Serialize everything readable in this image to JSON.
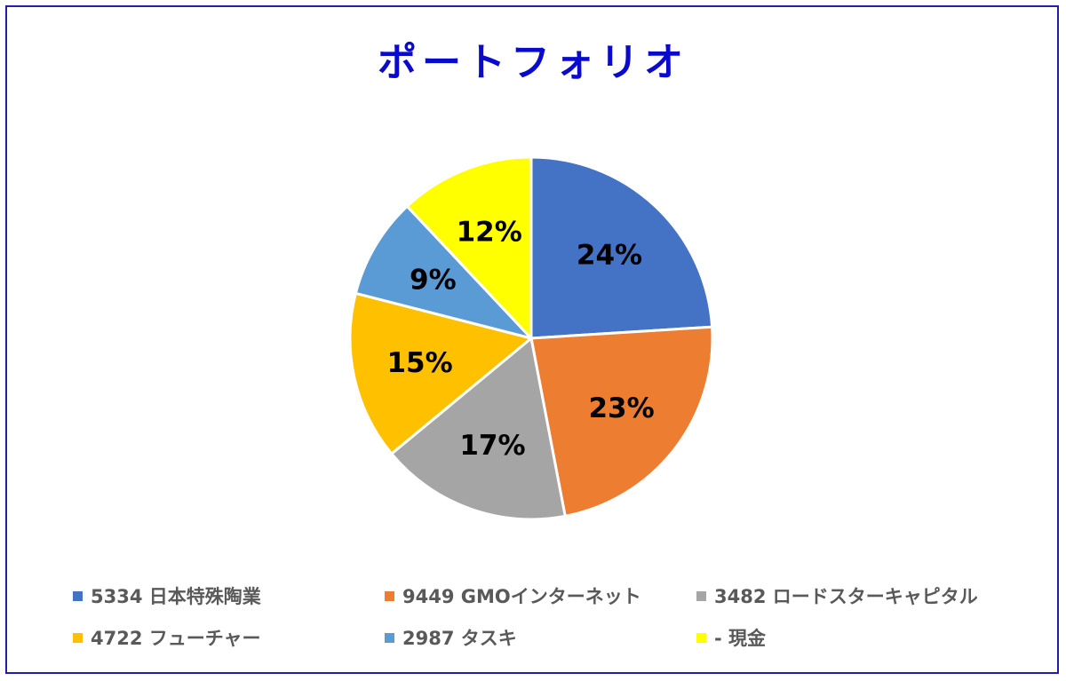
{
  "chart_data": {
    "type": "pie",
    "title": "ポートフォリオ",
    "slices": [
      {
        "label": "5334 日本特殊陶業",
        "value": 24,
        "color": "#4472c4",
        "data_label": "24%"
      },
      {
        "label": "9449 GMOインターネット",
        "value": 23,
        "color": "#ed7d31",
        "data_label": "23%"
      },
      {
        "label": "3482 ロードスターキャピタル",
        "value": 17,
        "color": "#a5a5a5",
        "data_label": "17%"
      },
      {
        "label": "4722 フューチャー",
        "value": 15,
        "color": "#ffc000",
        "data_label": "15%"
      },
      {
        "label": "2987 タスキ",
        "value": 9,
        "color": "#5b9bd5",
        "data_label": "9%"
      },
      {
        "label": "- 現金",
        "value": 12,
        "color": "#ffff00",
        "data_label": "12%"
      }
    ],
    "legend_position": "bottom"
  }
}
